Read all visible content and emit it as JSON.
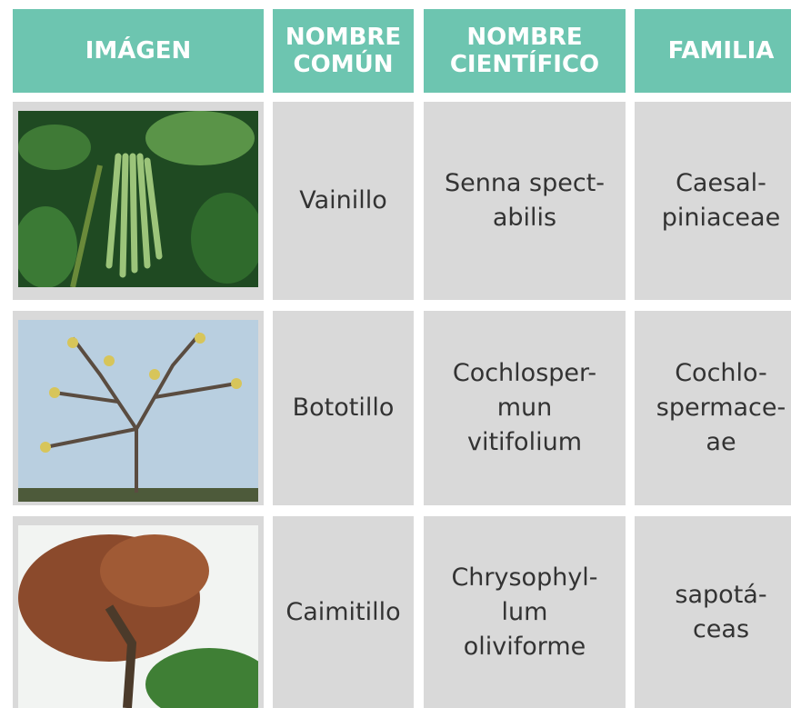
{
  "table": {
    "header": [
      [
        "IMÁGEN"
      ],
      [
        "NOMBRE",
        "COMÚN"
      ],
      [
        "NOMBRE",
        "CIENTÍFICO"
      ],
      [
        "FAMILIA"
      ]
    ],
    "rows": [
      [
        [
          "Vainillo"
        ],
        [
          "Senna spect-",
          "abilis"
        ],
        [
          "Caesal-",
          "piniaceae"
        ]
      ],
      [
        [
          "Bototillo"
        ],
        [
          "Cochlosper-",
          "mun",
          "vitifolium"
        ],
        [
          "Cochlo-",
          "spermace-",
          "ae"
        ]
      ],
      [
        [
          "Caimitillo"
        ],
        [
          "Chrysophyl-",
          "lum",
          "oliviforme"
        ],
        [
          "sapotá-",
          "ceas"
        ]
      ]
    ]
  }
}
